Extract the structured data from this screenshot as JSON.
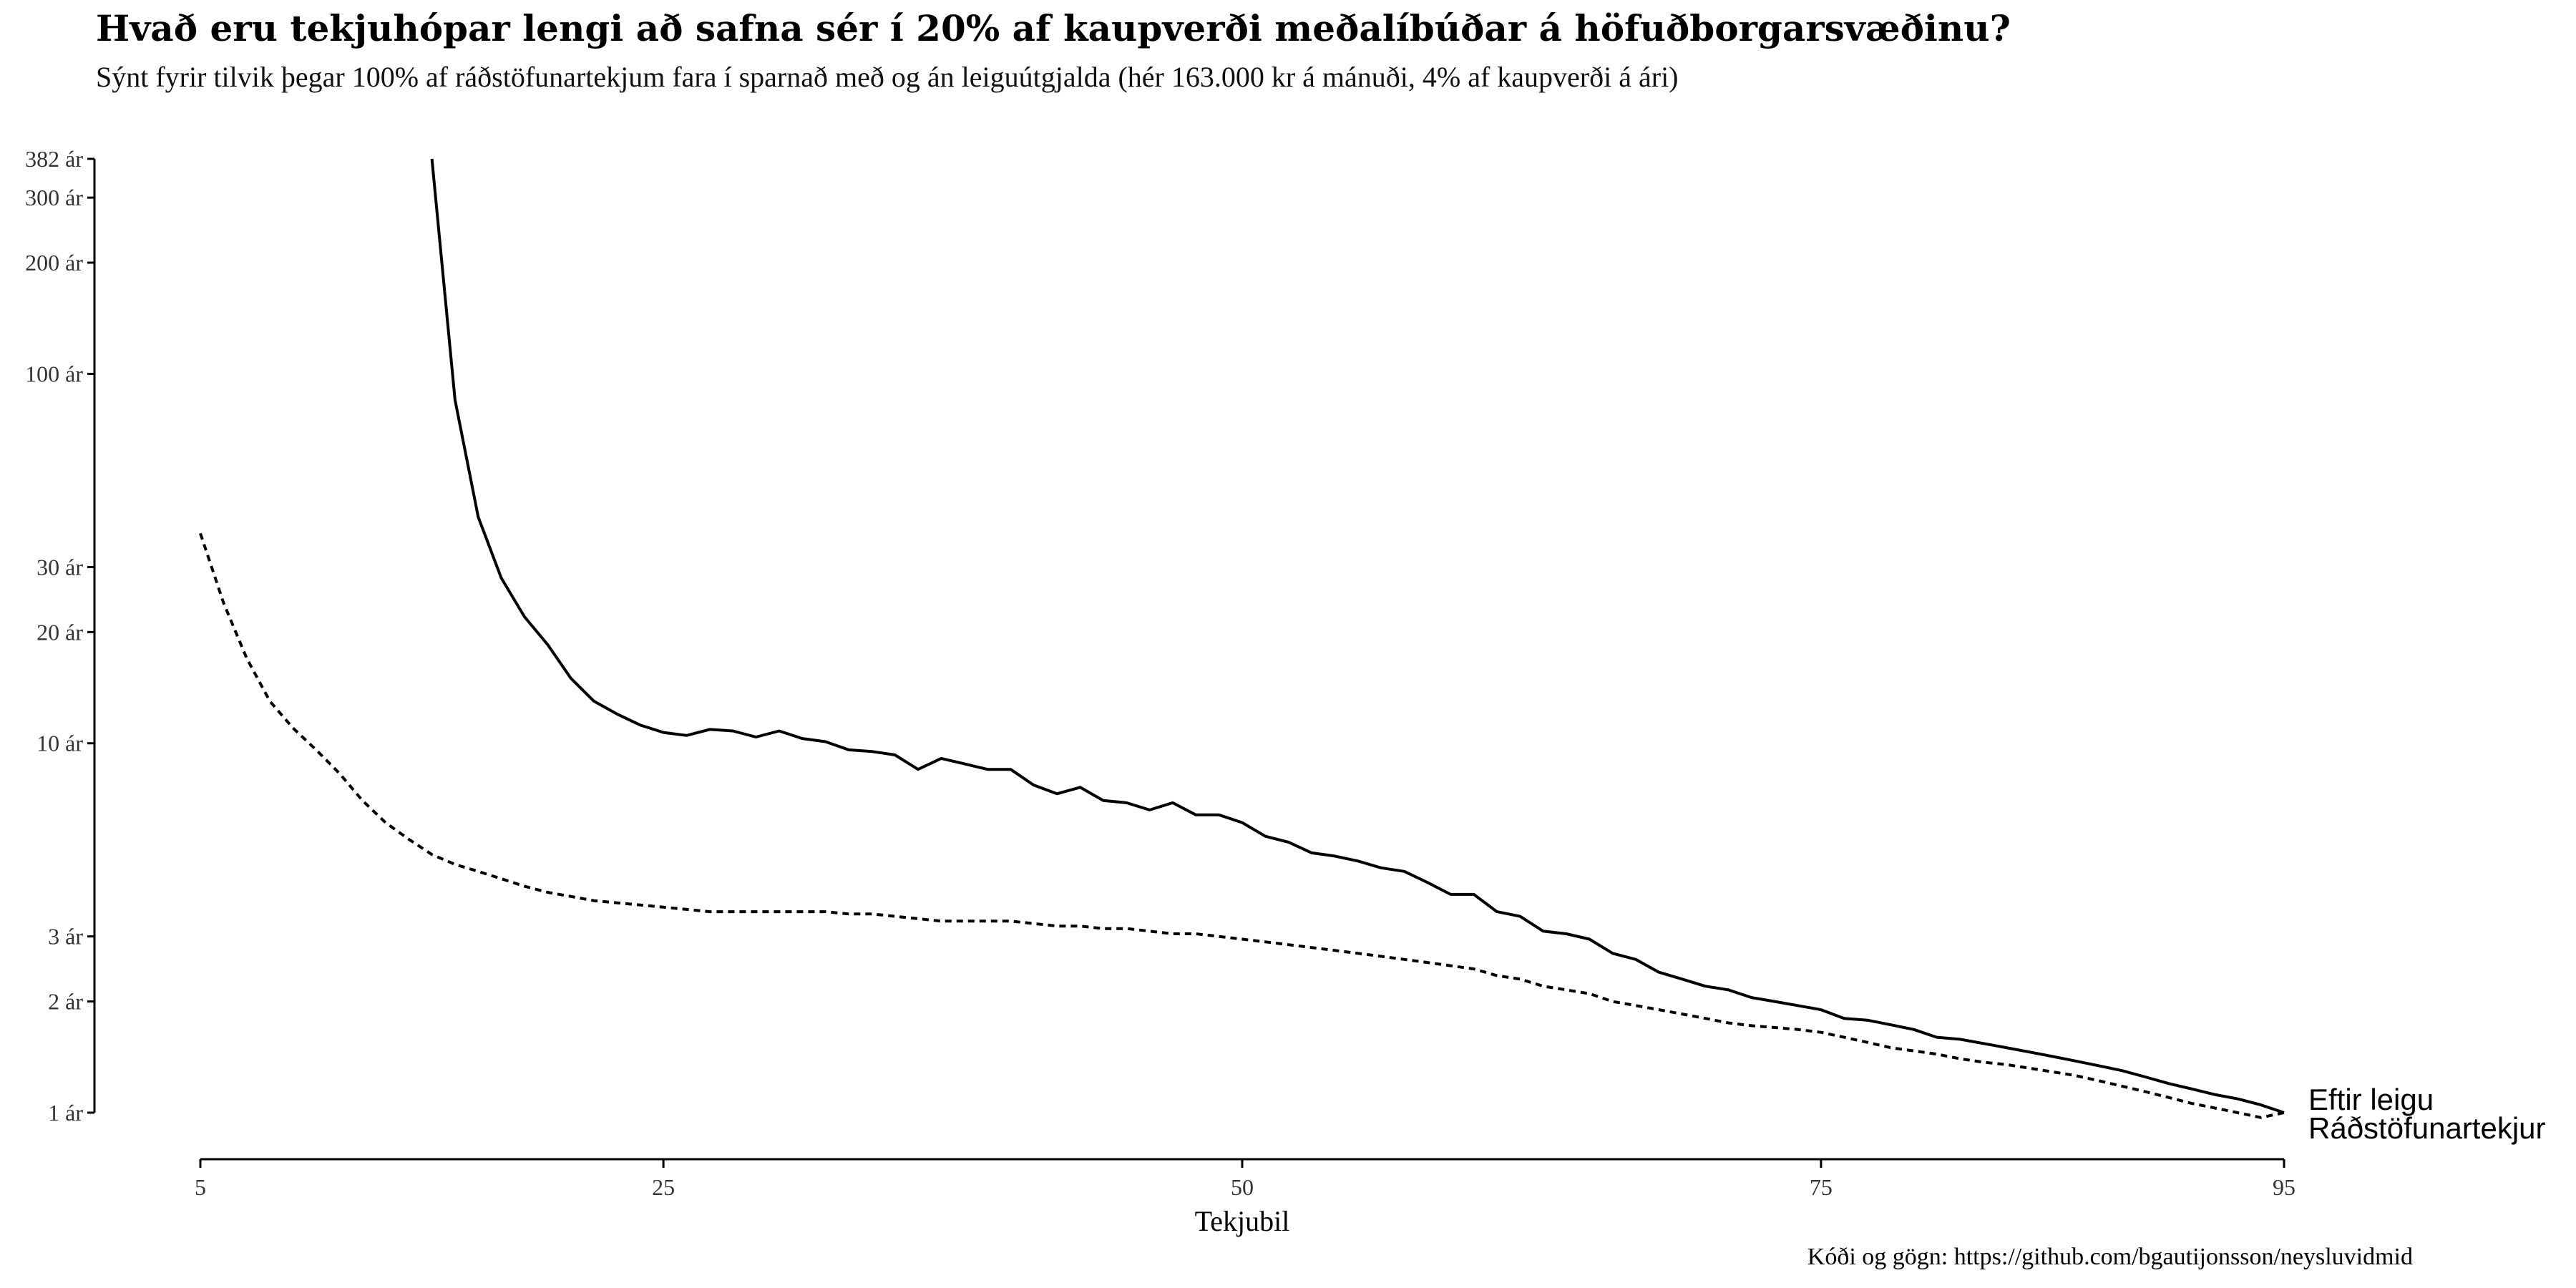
{
  "chart_data": {
    "type": "line",
    "title": "Hvað eru tekjuhópar lengi að safna sér í 20% af kaupverði meðalíbúðar á höfuðborgarsvæðinu?",
    "subtitle": "Sýnt fyrir tilvik þegar 100% af ráðstöfunartekjum fara í sparnað með og án leiguútgjalda (hér 163.000 kr á mánuði, 4% af kaupverði á ári)",
    "caption": "Kóði og gögn: https://github.com/bgautijonsson/neysluvidmid",
    "xlabel": "Tekjubil",
    "ylabel": "",
    "xlim": [
      5,
      95
    ],
    "ylim": [
      1,
      382
    ],
    "y_scale": "log",
    "grid": false,
    "x_ticks": [
      {
        "value": 5,
        "label": "5"
      },
      {
        "value": 25,
        "label": "25"
      },
      {
        "value": 50,
        "label": "50"
      },
      {
        "value": 75,
        "label": "75"
      },
      {
        "value": 95,
        "label": "95"
      }
    ],
    "y_ticks": [
      {
        "value": 1,
        "label": "1 ár"
      },
      {
        "value": 2,
        "label": "2 ár"
      },
      {
        "value": 3,
        "label": "3 ár"
      },
      {
        "value": 10,
        "label": "10 ár"
      },
      {
        "value": 20,
        "label": "20 ár"
      },
      {
        "value": 30,
        "label": "30 ár"
      },
      {
        "value": 100,
        "label": "100 ár"
      },
      {
        "value": 200,
        "label": "200 ár"
      },
      {
        "value": 300,
        "label": "300 ár"
      },
      {
        "value": 382,
        "label": "382 ár"
      }
    ],
    "series": [
      {
        "name": "Eftir leigu",
        "line_style": "solid",
        "x": [
          15,
          16,
          17,
          18,
          19,
          20,
          21,
          22,
          23,
          24,
          25,
          26,
          27,
          28,
          29,
          30,
          31,
          32,
          33,
          34,
          35,
          36,
          37,
          38,
          39,
          40,
          41,
          42,
          43,
          44,
          45,
          46,
          47,
          48,
          49,
          50,
          51,
          52,
          53,
          54,
          55,
          56,
          57,
          58,
          59,
          60,
          61,
          62,
          63,
          64,
          65,
          66,
          67,
          68,
          69,
          70,
          71,
          72,
          73,
          74,
          75,
          76,
          77,
          78,
          79,
          80,
          81,
          82,
          83,
          84,
          85,
          86,
          87,
          88,
          89,
          90,
          91,
          92,
          93,
          94,
          95
        ],
        "values": [
          382,
          85,
          41,
          28,
          22,
          18.5,
          15,
          13,
          12,
          11.2,
          10.7,
          10.5,
          10.9,
          10.8,
          10.4,
          10.8,
          10.3,
          10.1,
          9.6,
          9.5,
          9.3,
          8.5,
          9.1,
          8.8,
          8.5,
          8.5,
          7.7,
          7.3,
          7.6,
          7.0,
          6.9,
          6.6,
          6.9,
          6.4,
          6.4,
          6.1,
          5.6,
          5.4,
          5.05,
          4.95,
          4.8,
          4.6,
          4.5,
          4.2,
          3.9,
          3.9,
          3.5,
          3.4,
          3.1,
          3.05,
          2.95,
          2.7,
          2.6,
          2.4,
          2.3,
          2.2,
          2.15,
          2.05,
          2.0,
          1.95,
          1.9,
          1.8,
          1.78,
          1.73,
          1.68,
          1.6,
          1.58,
          1.54,
          1.5,
          1.46,
          1.42,
          1.38,
          1.34,
          1.3,
          1.25,
          1.2,
          1.16,
          1.12,
          1.09,
          1.05,
          1.0
        ]
      },
      {
        "name": "Ráðstöfunartekjur",
        "line_style": "dashed",
        "x": [
          5,
          6,
          7,
          8,
          9,
          10,
          11,
          12,
          13,
          14,
          15,
          16,
          17,
          18,
          19,
          20,
          21,
          22,
          23,
          24,
          25,
          26,
          27,
          28,
          29,
          30,
          31,
          32,
          33,
          34,
          35,
          36,
          37,
          38,
          39,
          40,
          41,
          42,
          43,
          44,
          45,
          46,
          47,
          48,
          49,
          50,
          51,
          52,
          53,
          54,
          55,
          56,
          57,
          58,
          59,
          60,
          61,
          62,
          63,
          64,
          65,
          66,
          67,
          68,
          69,
          70,
          71,
          72,
          73,
          74,
          75,
          76,
          77,
          78,
          79,
          80,
          81,
          82,
          83,
          84,
          85,
          86,
          87,
          88,
          89,
          90,
          91,
          92,
          93,
          94,
          95
        ],
        "values": [
          37,
          24,
          17,
          13,
          11,
          9.6,
          8.3,
          7.0,
          6.1,
          5.5,
          5.0,
          4.7,
          4.5,
          4.3,
          4.1,
          3.95,
          3.85,
          3.75,
          3.7,
          3.65,
          3.6,
          3.55,
          3.5,
          3.5,
          3.5,
          3.5,
          3.5,
          3.5,
          3.45,
          3.45,
          3.4,
          3.35,
          3.3,
          3.3,
          3.3,
          3.3,
          3.25,
          3.2,
          3.2,
          3.15,
          3.15,
          3.1,
          3.05,
          3.05,
          3.0,
          2.95,
          2.9,
          2.85,
          2.8,
          2.75,
          2.7,
          2.65,
          2.6,
          2.55,
          2.5,
          2.45,
          2.35,
          2.3,
          2.2,
          2.15,
          2.1,
          2.0,
          1.95,
          1.9,
          1.85,
          1.8,
          1.75,
          1.72,
          1.7,
          1.68,
          1.65,
          1.6,
          1.55,
          1.5,
          1.47,
          1.44,
          1.4,
          1.37,
          1.35,
          1.32,
          1.29,
          1.26,
          1.22,
          1.18,
          1.14,
          1.1,
          1.06,
          1.03,
          1.0,
          0.97,
          1.0
        ]
      }
    ]
  }
}
